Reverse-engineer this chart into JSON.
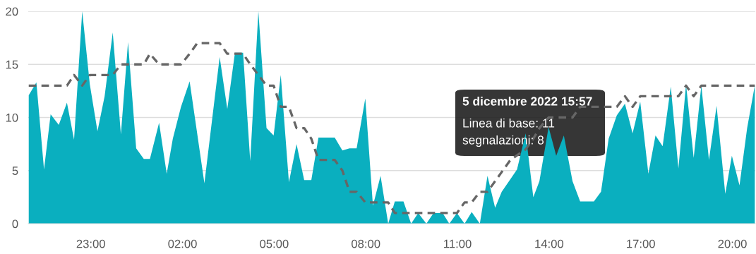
{
  "chart_data": {
    "type": "area",
    "xlim": [
      "2022-12-04T20:57",
      "2022-12-05T20:45"
    ],
    "xticks": [
      {
        "value": "2022-12-04T23:00",
        "label": "23:00"
      },
      {
        "value": "2022-12-05T02:00",
        "label": "02:00"
      },
      {
        "value": "2022-12-05T05:00",
        "label": "05:00"
      },
      {
        "value": "2022-12-05T08:00",
        "label": "08:00"
      },
      {
        "value": "2022-12-05T11:00",
        "label": "11:00"
      },
      {
        "value": "2022-12-05T14:00",
        "label": "14:00"
      },
      {
        "value": "2022-12-05T17:00",
        "label": "17:00"
      },
      {
        "value": "2022-12-05T20:00",
        "label": "20:00"
      }
    ],
    "ylim": [
      0,
      20
    ],
    "yticks": [
      0,
      5,
      10,
      15,
      20
    ],
    "grid": "y",
    "legend": false,
    "series": [
      {
        "color": "#0aafbf",
        "x": [
          "2022-12-04T20:58",
          "2022-12-04T21:13",
          "2022-12-04T21:28",
          "2022-12-04T21:41",
          "2022-12-04T21:57",
          "2022-12-04T22:13",
          "2022-12-04T22:27",
          "2022-12-04T22:43",
          "2022-12-04T22:58",
          "2022-12-04T23:13",
          "2022-12-04T23:27",
          "2022-12-04T23:43",
          "2022-12-04T23:59",
          "2022-12-05T00:13",
          "2022-12-05T00:29",
          "2022-12-05T00:44",
          "2022-12-05T00:56",
          "2022-12-05T01:14",
          "2022-12-05T01:29",
          "2022-12-05T01:41",
          "2022-12-05T01:57",
          "2022-12-05T02:14",
          "2022-12-05T02:43",
          "2022-12-05T03:13",
          "2022-12-05T03:28",
          "2022-12-05T03:43",
          "2022-12-05T03:59",
          "2022-12-05T04:13",
          "2022-12-05T04:29",
          "2022-12-05T04:45",
          "2022-12-05T04:59",
          "2022-12-05T05:13",
          "2022-12-05T05:29",
          "2022-12-05T05:44",
          "2022-12-05T05:59",
          "2022-12-05T06:13",
          "2022-12-05T06:27",
          "2022-12-05T06:59",
          "2022-12-05T07:14",
          "2022-12-05T07:28",
          "2022-12-05T07:42",
          "2022-12-05T07:59",
          "2022-12-05T08:14",
          "2022-12-05T08:29",
          "2022-12-05T08:44",
          "2022-12-05T08:57",
          "2022-12-05T09:14",
          "2022-12-05T09:29",
          "2022-12-05T09:43",
          "2022-12-05T09:59",
          "2022-12-05T10:13",
          "2022-12-05T10:31",
          "2022-12-05T10:44",
          "2022-12-05T10:59",
          "2022-12-05T11:14",
          "2022-12-05T11:28",
          "2022-12-05T11:44",
          "2022-12-05T11:59",
          "2022-12-05T12:14",
          "2022-12-05T12:27",
          "2022-12-05T12:57",
          "2022-12-05T13:14",
          "2022-12-05T13:29",
          "2022-12-05T13:41",
          "2022-12-05T13:59",
          "2022-12-05T14:14",
          "2022-12-05T14:29",
          "2022-12-05T14:46",
          "2022-12-05T15:01",
          "2022-12-05T15:28",
          "2022-12-05T15:42",
          "2022-12-05T15:57",
          "2022-12-05T16:13",
          "2022-12-05T16:29",
          "2022-12-05T16:44",
          "2022-12-05T16:59",
          "2022-12-05T17:15",
          "2022-12-05T17:29",
          "2022-12-05T17:43",
          "2022-12-05T17:59",
          "2022-12-05T18:14",
          "2022-12-05T18:29",
          "2022-12-05T18:44",
          "2022-12-05T18:59",
          "2022-12-05T19:14",
          "2022-12-05T19:29",
          "2022-12-05T19:46",
          "2022-12-05T19:59",
          "2022-12-05T20:14",
          "2022-12-05T20:29",
          "2022-12-05T20:44"
        ],
        "values": [
          12.1,
          13.3,
          5.1,
          10.3,
          9.3,
          11.4,
          7.9,
          20,
          13.1,
          8.7,
          12,
          18,
          8.4,
          17.1,
          7.1,
          6.1,
          6.1,
          9.5,
          4.7,
          8,
          11,
          13.4,
          3.8,
          15.7,
          10.8,
          16.1,
          16.1,
          5.9,
          20,
          9.0,
          8.3,
          14.0,
          3.9,
          7.5,
          4.1,
          4.1,
          8.1,
          8.1,
          6.9,
          7.1,
          7.1,
          11.8,
          1.7,
          4.5,
          0,
          2.1,
          2.1,
          0,
          1,
          0,
          1,
          1,
          0,
          1,
          0,
          1.1,
          0,
          4.5,
          1.5,
          3.0,
          5.1,
          8.5,
          2.5,
          4.0,
          9.1,
          6.4,
          8.3,
          4.0,
          2.1,
          2.1,
          3.0,
          8,
          10.2,
          11.3,
          8.5,
          11.5,
          4.7,
          8.3,
          7.3,
          12.9,
          5.2,
          13.1,
          6.2,
          13.0,
          6.0,
          11.1,
          2.8,
          6.4,
          3.6,
          9.0,
          13.0
        ]
      },
      {
        "type": "line",
        "color": "#666666",
        "line_style": "dashed",
        "x": [
          "2022-12-04T20:58",
          "2022-12-04T22:13",
          "2022-12-04T22:27",
          "2022-12-04T22:43",
          "2022-12-04T22:58",
          "2022-12-04T23:43",
          "2022-12-04T23:59",
          "2022-12-05T00:44",
          "2022-12-05T00:56",
          "2022-12-05T01:14",
          "2022-12-05T01:57",
          "2022-12-05T02:14",
          "2022-12-05T02:29",
          "2022-12-05T03:13",
          "2022-12-05T03:28",
          "2022-12-05T03:59",
          "2022-12-05T04:13",
          "2022-12-05T04:29",
          "2022-12-05T04:45",
          "2022-12-05T04:59",
          "2022-12-05T05:13",
          "2022-12-05T05:29",
          "2022-12-05T05:44",
          "2022-12-05T05:59",
          "2022-12-05T06:13",
          "2022-12-05T06:27",
          "2022-12-05T06:59",
          "2022-12-05T07:14",
          "2022-12-05T07:28",
          "2022-12-05T07:42",
          "2022-12-05T07:59",
          "2022-12-05T08:44",
          "2022-12-05T08:57",
          "2022-12-05T10:59",
          "2022-12-05T11:14",
          "2022-12-05T11:28",
          "2022-12-05T11:44",
          "2022-12-05T11:59",
          "2022-12-05T12:14",
          "2022-12-05T12:29",
          "2022-12-05T12:44",
          "2022-12-05T13:14",
          "2022-12-05T13:29",
          "2022-12-05T13:41",
          "2022-12-05T13:59",
          "2022-12-05T14:46",
          "2022-12-05T15:01",
          "2022-12-05T16:13",
          "2022-12-05T16:29",
          "2022-12-05T16:44",
          "2022-12-05T16:59",
          "2022-12-05T18:14",
          "2022-12-05T18:29",
          "2022-12-05T18:44",
          "2022-12-05T18:59",
          "2022-12-05T20:44"
        ],
        "values": [
          13,
          13,
          14,
          13,
          14,
          14,
          15,
          15,
          16,
          15,
          15,
          16,
          17,
          17,
          16,
          16,
          15,
          14,
          13,
          13,
          11,
          11,
          9,
          9,
          8,
          6,
          6,
          5,
          3,
          3,
          2,
          2,
          1,
          1,
          2,
          2,
          3,
          3,
          4,
          5,
          6,
          7,
          8,
          9,
          10,
          10,
          11,
          11,
          12,
          11,
          12,
          12,
          13,
          12,
          13,
          13
        ]
      }
    ],
    "annotations": [
      "5 dicembre 2022 15:57",
      "Linea di base: 11",
      "segnalazioni: 8"
    ]
  }
}
